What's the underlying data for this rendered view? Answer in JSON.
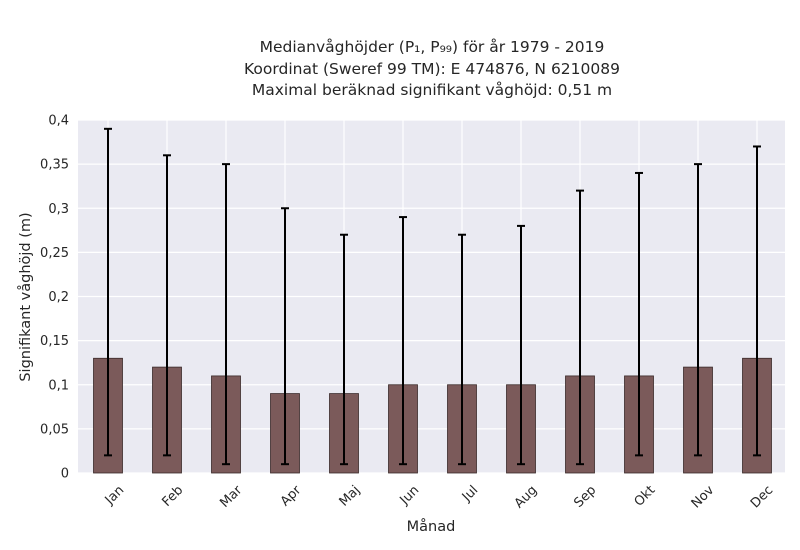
{
  "chart_data": {
    "type": "bar",
    "title_lines": [
      "Medianvåghöjder (P₁, P₉₉) för år 1979 - 2019",
      "Koordinat (Sweref 99 TM): E 474876, N 6210089",
      "Maximal beräknad signifikant våghöjd: 0,51 m"
    ],
    "xlabel": "Månad",
    "ylabel": "Signifikant våghöjd (m)",
    "categories": [
      "Jan",
      "Feb",
      "Mar",
      "Apr",
      "Maj",
      "Jun",
      "Jul",
      "Aug",
      "Sep",
      "Okt",
      "Nov",
      "Dec"
    ],
    "values": [
      0.13,
      0.12,
      0.11,
      0.09,
      0.09,
      0.1,
      0.1,
      0.1,
      0.11,
      0.11,
      0.12,
      0.13
    ],
    "lower": [
      0.02,
      0.02,
      0.01,
      0.01,
      0.01,
      0.01,
      0.01,
      0.01,
      0.01,
      0.02,
      0.02,
      0.02
    ],
    "upper": [
      0.39,
      0.36,
      0.35,
      0.3,
      0.27,
      0.29,
      0.27,
      0.28,
      0.32,
      0.34,
      0.35,
      0.37
    ],
    "yticks": [
      0,
      0.05,
      0.1,
      0.15,
      0.2,
      0.25,
      0.3,
      0.35,
      0.4
    ],
    "ytick_labels": [
      "0",
      "0,05",
      "0,1",
      "0,15",
      "0,2",
      "0,25",
      "0,3",
      "0,35",
      "0,4"
    ],
    "ylim": [
      0,
      0.4
    ],
    "grid": true,
    "colors": {
      "bar": "#7b5a5a",
      "bar_edge": "#3a2a2a",
      "errorbar": "#000000",
      "plot_background": "#eaeaf2",
      "grid": "#ffffff"
    }
  }
}
